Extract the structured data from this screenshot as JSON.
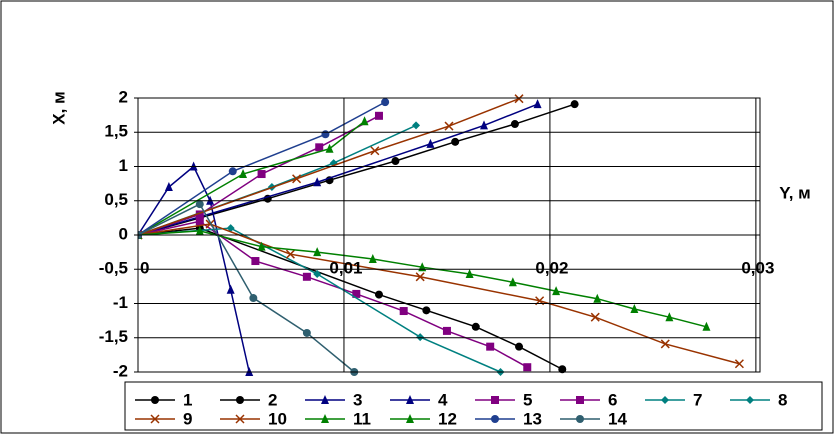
{
  "chart_data": {
    "type": "line",
    "xlabel": "Y, м",
    "ylabel": "X, м",
    "xlim": [
      0,
      0.0302
    ],
    "ylim": [
      -2,
      2
    ],
    "xticks": [
      {
        "value": 0,
        "label": "0"
      },
      {
        "value": 0.01,
        "label": "0,01"
      },
      {
        "value": 0.02,
        "label": "0,02"
      },
      {
        "value": 0.03,
        "label": "0,03"
      }
    ],
    "yticks": [
      2,
      {
        "value": 1.5,
        "label": "1,5"
      },
      1,
      {
        "value": 0.5,
        "label": "0,5"
      },
      0,
      {
        "value": -0.5,
        "label": "-0,5"
      },
      -1,
      {
        "value": -1.5,
        "label": "-1,5"
      },
      -2
    ],
    "grid": true,
    "series": [
      {
        "name": "1",
        "color": "#000000",
        "marker": "circle",
        "x": [
          0,
          0.003,
          0.0063,
          0.0093,
          0.0125,
          0.0154,
          0.0183,
          0.0212
        ],
        "values": [
          0,
          0.25,
          0.53,
          0.8,
          1.08,
          1.36,
          1.62,
          1.91
        ]
      },
      {
        "name": "2",
        "color": "#000000",
        "marker": "circle",
        "x": [
          0,
          0.003,
          0.0117,
          0.014,
          0.0164,
          0.0185,
          0.0206
        ],
        "values": [
          0,
          0.1,
          -0.87,
          -1.1,
          -1.34,
          -1.63,
          -1.96
        ]
      },
      {
        "name": "3",
        "color": "#000080",
        "marker": "triangle",
        "x": [
          0,
          0.0015,
          0.0027,
          0.0035,
          0.0045,
          0.0054
        ],
        "values": [
          0,
          0.7,
          1.0,
          0.5,
          -0.8,
          -2
        ]
      },
      {
        "name": "4",
        "color": "#000080",
        "marker": "triangle",
        "x": [
          0,
          0.0087,
          0.0142,
          0.0168,
          0.0194
        ],
        "values": [
          0,
          0.77,
          1.33,
          1.6,
          1.91
        ]
      },
      {
        "name": "5",
        "color": "#800080",
        "marker": "square",
        "x": [
          0,
          0.003,
          0.006,
          0.0088,
          0.0117
        ],
        "values": [
          0,
          0.3,
          0.89,
          1.28,
          1.74
        ]
      },
      {
        "name": "6",
        "color": "#800080",
        "marker": "square",
        "x": [
          0,
          0.003,
          0.0057,
          0.0082,
          0.0106,
          0.0129,
          0.015,
          0.0171,
          0.0189
        ],
        "values": [
          0,
          0.2,
          -0.38,
          -0.61,
          -0.86,
          -1.11,
          -1.4,
          -1.63,
          -1.93
        ]
      },
      {
        "name": "7",
        "color": "#008080",
        "marker": "diamond",
        "x": [
          0,
          0.0065,
          0.0095,
          0.0135
        ],
        "values": [
          0,
          0.7,
          1.05,
          1.6
        ]
      },
      {
        "name": "8",
        "color": "#008080",
        "marker": "diamond",
        "x": [
          0,
          0.0045,
          0.0087,
          0.0137,
          0.0176
        ],
        "values": [
          0,
          0.1,
          -0.57,
          -1.49,
          -2
        ]
      },
      {
        "name": "9",
        "color": "#993300",
        "marker": "x",
        "x": [
          0,
          0.0077,
          0.0115,
          0.0151,
          0.0185
        ],
        "values": [
          0,
          0.82,
          1.23,
          1.59,
          1.99
        ]
      },
      {
        "name": "10",
        "color": "#993300",
        "marker": "x",
        "x": [
          0,
          0.0035,
          0.0074,
          0.0137,
          0.0195,
          0.0222,
          0.0256,
          0.0292
        ],
        "values": [
          0,
          0.16,
          -0.28,
          -0.61,
          -0.96,
          -1.2,
          -1.59,
          -1.88
        ]
      },
      {
        "name": "11",
        "color": "#008000",
        "marker": "triangle",
        "x": [
          0,
          0.0051,
          0.0093,
          0.011
        ],
        "values": [
          0,
          0.89,
          1.26,
          1.66
        ]
      },
      {
        "name": "12",
        "color": "#008000",
        "marker": "triangle",
        "x": [
          0,
          0.003,
          0.006,
          0.0087,
          0.0114,
          0.0138,
          0.0161,
          0.0182,
          0.0203,
          0.0223,
          0.0241,
          0.0258,
          0.0276
        ],
        "values": [
          0,
          0.06,
          -0.17,
          -0.25,
          -0.35,
          -0.47,
          -0.57,
          -0.69,
          -0.82,
          -0.93,
          -1.08,
          -1.2,
          -1.34
        ]
      },
      {
        "name": "13",
        "color": "#1f3f8f",
        "marker": "circle",
        "x": [
          0,
          0.0046,
          0.0091,
          0.012
        ],
        "values": [
          0,
          0.93,
          1.47,
          1.94
        ]
      },
      {
        "name": "14",
        "color": "#2f5f6f",
        "marker": "circle",
        "x": [
          0,
          0.003,
          0.0056,
          0.0082,
          0.0105
        ],
        "values": [
          0,
          0.45,
          -0.92,
          -1.43,
          -2.0
        ]
      }
    ]
  }
}
